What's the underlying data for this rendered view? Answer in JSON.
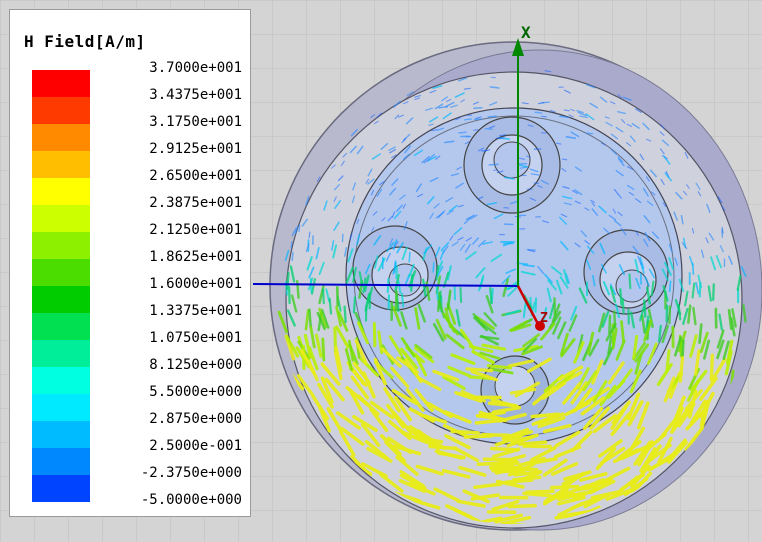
{
  "legend": {
    "title": "H Field[A/m]",
    "levels": [
      {
        "label": "3.7000e+001",
        "color": "#ff0000"
      },
      {
        "label": "3.4375e+001",
        "color": "#ff3a00"
      },
      {
        "label": "3.1750e+001",
        "color": "#ff8a00"
      },
      {
        "label": "2.9125e+001",
        "color": "#ffbf00"
      },
      {
        "label": "2.6500e+001",
        "color": "#ffff00"
      },
      {
        "label": "2.3875e+001",
        "color": "#ccff00"
      },
      {
        "label": "2.1250e+001",
        "color": "#8cf000"
      },
      {
        "label": "1.8625e+001",
        "color": "#4cdd00"
      },
      {
        "label": "1.6000e+001",
        "color": "#00cc00"
      },
      {
        "label": "1.3375e+001",
        "color": "#00e050"
      },
      {
        "label": "1.0750e+001",
        "color": "#00ee99"
      },
      {
        "label": "8.1250e+000",
        "color": "#00ffe0"
      },
      {
        "label": "5.5000e+000",
        "color": "#00eaff"
      },
      {
        "label": "2.8750e+000",
        "color": "#00bbff"
      },
      {
        "label": "2.5000e-001",
        "color": "#0088ff"
      },
      {
        "label": "-2.3750e+000",
        "color": "#0044ff"
      },
      {
        "label": "-5.0000e+000",
        "color": "#0000ff"
      }
    ]
  },
  "axes": {
    "x_label": "X",
    "z_label": "Z",
    "x_color": "#009900",
    "z_color": "#cc0000",
    "y_color": "#0000cc"
  },
  "colors": {
    "background": "#d4d4d4",
    "grid": "#c2c2c2",
    "outer_ring": "#a9a9c9",
    "inner_disk": "#b3c9ee"
  }
}
